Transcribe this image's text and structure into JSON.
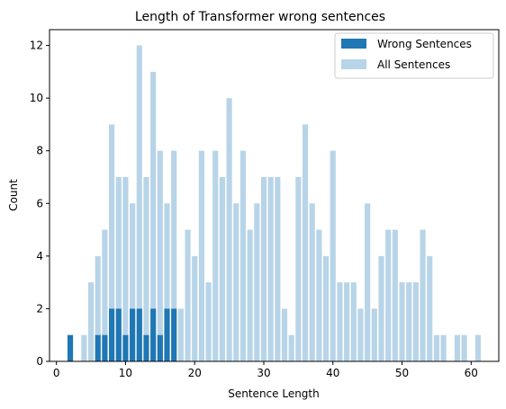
{
  "chart_data": {
    "type": "bar",
    "title": "Length of Transformer wrong sentences",
    "xlabel": "Sentence Length",
    "ylabel": "Count",
    "xlim": [
      -1,
      64
    ],
    "ylim": [
      0,
      12.6
    ],
    "xticks": [
      0,
      10,
      20,
      30,
      40,
      50,
      60
    ],
    "yticks": [
      0,
      2,
      4,
      6,
      8,
      10,
      12
    ],
    "legend_position": "top-right",
    "colors": {
      "wrong": "#1f77b4",
      "all": "#b8d4e8"
    },
    "x": [
      2,
      4,
      5,
      6,
      7,
      8,
      9,
      10,
      11,
      12,
      13,
      14,
      15,
      16,
      17,
      18,
      19,
      20,
      21,
      22,
      23,
      24,
      25,
      26,
      27,
      28,
      29,
      30,
      31,
      32,
      33,
      34,
      35,
      36,
      37,
      38,
      39,
      40,
      41,
      42,
      43,
      44,
      45,
      46,
      47,
      48,
      49,
      50,
      51,
      52,
      53,
      54,
      55,
      56,
      58,
      59,
      61
    ],
    "series": [
      {
        "name": "All Sentences",
        "key": "all",
        "values": [
          1,
          1,
          3,
          4,
          5,
          9,
          7,
          7,
          6,
          12,
          7,
          11,
          8,
          6,
          8,
          2,
          5,
          4,
          8,
          3,
          8,
          7,
          10,
          6,
          8,
          5,
          6,
          7,
          7,
          7,
          2,
          1,
          7,
          9,
          6,
          5,
          4,
          8,
          3,
          3,
          3,
          2,
          6,
          2,
          4,
          5,
          5,
          3,
          3,
          3,
          5,
          4,
          1,
          1,
          1,
          1,
          1
        ]
      },
      {
        "name": "Wrong Sentences",
        "key": "wrong",
        "values": [
          1,
          0,
          0,
          1,
          1,
          2,
          2,
          1,
          2,
          2,
          1,
          2,
          1,
          2,
          2,
          0,
          0,
          0,
          0,
          0,
          0,
          0,
          0,
          0,
          0,
          0,
          0,
          0,
          0,
          0,
          0,
          0,
          0,
          0,
          0,
          0,
          0,
          0,
          0,
          0,
          0,
          0,
          0,
          0,
          0,
          0,
          0,
          0,
          0,
          0,
          0,
          0,
          0,
          0,
          0,
          0,
          0
        ]
      }
    ]
  }
}
